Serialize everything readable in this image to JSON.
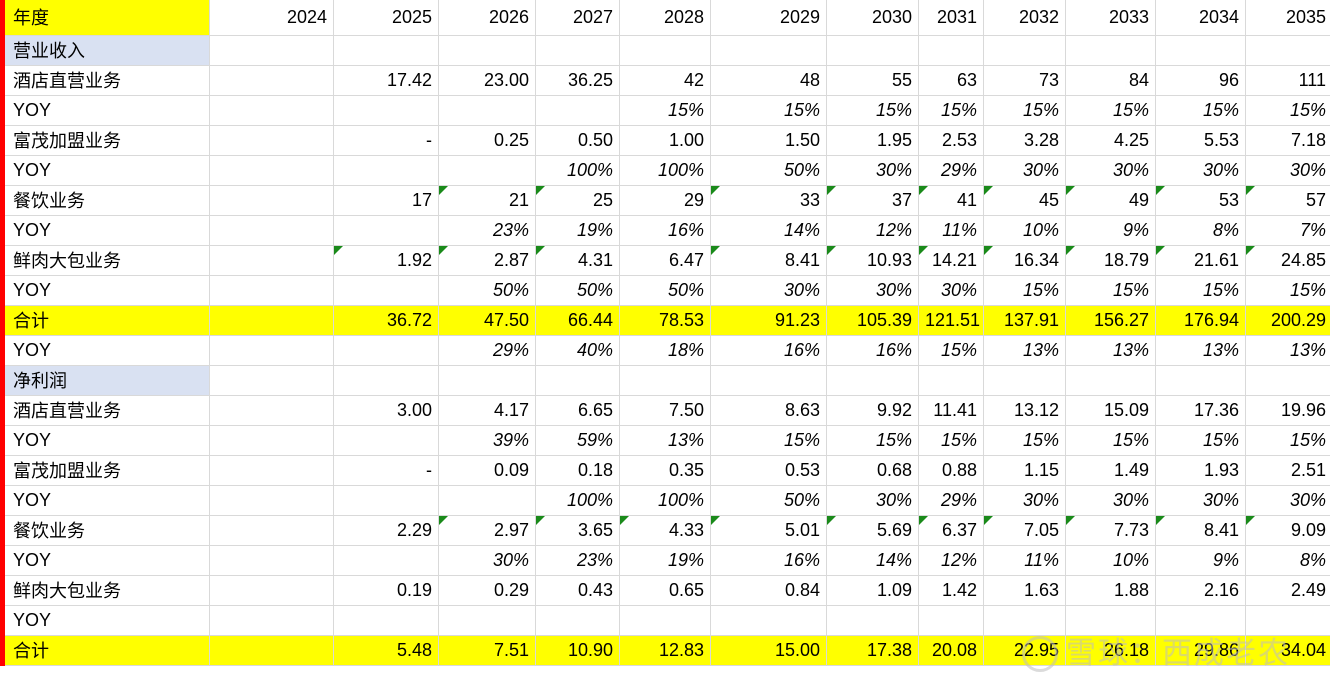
{
  "header": {
    "label": "年度",
    "years": [
      "2024",
      "2025",
      "2026",
      "2027",
      "2028",
      "2029",
      "2030",
      "2031",
      "2032",
      "2033",
      "2034",
      "2035"
    ]
  },
  "rows": [
    {
      "type": "section",
      "label": "营业收入",
      "cells": [
        "",
        "",
        "",
        "",
        "",
        "",
        "",
        "",
        "",
        "",
        "",
        ""
      ]
    },
    {
      "type": "data",
      "label": "酒店直营业务",
      "cells": [
        "",
        "17.42",
        "23.00",
        "36.25",
        "42",
        "48",
        "55",
        "63",
        "73",
        "84",
        "96",
        "111"
      ]
    },
    {
      "type": "pct",
      "label": "YOY",
      "cells": [
        "",
        "",
        "",
        "",
        "15%",
        "15%",
        "15%",
        "15%",
        "15%",
        "15%",
        "15%",
        "15%"
      ]
    },
    {
      "type": "data",
      "label": "富茂加盟业务",
      "cells": [
        "",
        "-",
        "0.25",
        "0.50",
        "1.00",
        "1.50",
        "1.95",
        "2.53",
        "3.28",
        "4.25",
        "5.53",
        "7.18"
      ]
    },
    {
      "type": "pct",
      "label": "YOY",
      "cells": [
        "",
        "",
        "",
        "100%",
        "100%",
        "50%",
        "30%",
        "29%",
        "30%",
        "30%",
        "30%",
        "30%"
      ]
    },
    {
      "type": "data",
      "label": "餐饮业务",
      "cells": [
        "",
        "17",
        "21",
        "25",
        "29",
        "33",
        "37",
        "41",
        "45",
        "49",
        "53",
        "57"
      ]
    },
    {
      "type": "pct",
      "label": "YOY",
      "cells": [
        "",
        "",
        "23%",
        "19%",
        "16%",
        "14%",
        "12%",
        "11%",
        "10%",
        "9%",
        "8%",
        "7%"
      ]
    },
    {
      "type": "data",
      "label": "鲜肉大包业务",
      "cells": [
        "",
        "1.92",
        "2.87",
        "4.31",
        "6.47",
        "8.41",
        "10.93",
        "14.21",
        "16.34",
        "18.79",
        "21.61",
        "24.85"
      ]
    },
    {
      "type": "pct",
      "label": "YOY",
      "cells": [
        "",
        "",
        "50%",
        "50%",
        "50%",
        "30%",
        "30%",
        "30%",
        "15%",
        "15%",
        "15%",
        "15%"
      ]
    },
    {
      "type": "total",
      "label": "合计",
      "cells": [
        "",
        "36.72",
        "47.50",
        "66.44",
        "78.53",
        "91.23",
        "105.39",
        "121.51",
        "137.91",
        "156.27",
        "176.94",
        "200.29"
      ]
    },
    {
      "type": "pct",
      "label": "YOY",
      "cells": [
        "",
        "",
        "29%",
        "40%",
        "18%",
        "16%",
        "16%",
        "15%",
        "13%",
        "13%",
        "13%",
        "13%"
      ]
    },
    {
      "type": "section",
      "label": "净利润",
      "cells": [
        "",
        "",
        "",
        "",
        "",
        "",
        "",
        "",
        "",
        "",
        "",
        ""
      ]
    },
    {
      "type": "data",
      "label": "酒店直营业务",
      "cells": [
        "",
        "3.00",
        "4.17",
        "6.65",
        "7.50",
        "8.63",
        "9.92",
        "11.41",
        "13.12",
        "15.09",
        "17.36",
        "19.96"
      ]
    },
    {
      "type": "pct",
      "label": "YOY",
      "cells": [
        "",
        "",
        "39%",
        "59%",
        "13%",
        "15%",
        "15%",
        "15%",
        "15%",
        "15%",
        "15%",
        "15%"
      ]
    },
    {
      "type": "data",
      "label": "富茂加盟业务",
      "cells": [
        "",
        "-",
        "0.09",
        "0.18",
        "0.35",
        "0.53",
        "0.68",
        "0.88",
        "1.15",
        "1.49",
        "1.93",
        "2.51"
      ]
    },
    {
      "type": "pct",
      "label": "YOY",
      "cells": [
        "",
        "",
        "",
        "100%",
        "100%",
        "50%",
        "30%",
        "29%",
        "30%",
        "30%",
        "30%",
        "30%"
      ]
    },
    {
      "type": "data",
      "label": "餐饮业务",
      "cells": [
        "",
        "2.29",
        "2.97",
        "3.65",
        "4.33",
        "5.01",
        "5.69",
        "6.37",
        "7.05",
        "7.73",
        "8.41",
        "9.09"
      ]
    },
    {
      "type": "pct",
      "label": "YOY",
      "cells": [
        "",
        "",
        "30%",
        "23%",
        "19%",
        "16%",
        "14%",
        "12%",
        "11%",
        "10%",
        "9%",
        "8%"
      ]
    },
    {
      "type": "data",
      "label": "鲜肉大包业务",
      "cells": [
        "",
        "0.19",
        "0.29",
        "0.43",
        "0.65",
        "0.84",
        "1.09",
        "1.42",
        "1.63",
        "1.88",
        "2.16",
        "2.49"
      ]
    },
    {
      "type": "pct",
      "label": "YOY",
      "cells": [
        "",
        "",
        "",
        "",
        "",
        "",
        "",
        "",
        "",
        "",
        "",
        ""
      ]
    },
    {
      "type": "total",
      "label": "合计",
      "cells": [
        "",
        "5.48",
        "7.51",
        "10.90",
        "12.83",
        "15.00",
        "17.38",
        "20.08",
        "22.95",
        "26.18",
        "29.86",
        "34.04"
      ]
    }
  ],
  "watermark": "雪球：西成老农",
  "colors": {
    "highlight": "#ffff00",
    "section": "#d9e1f2",
    "frozen_border": "#ff0000",
    "error_triangle": "#1a8a1a",
    "grid": "#d9d9d9"
  }
}
